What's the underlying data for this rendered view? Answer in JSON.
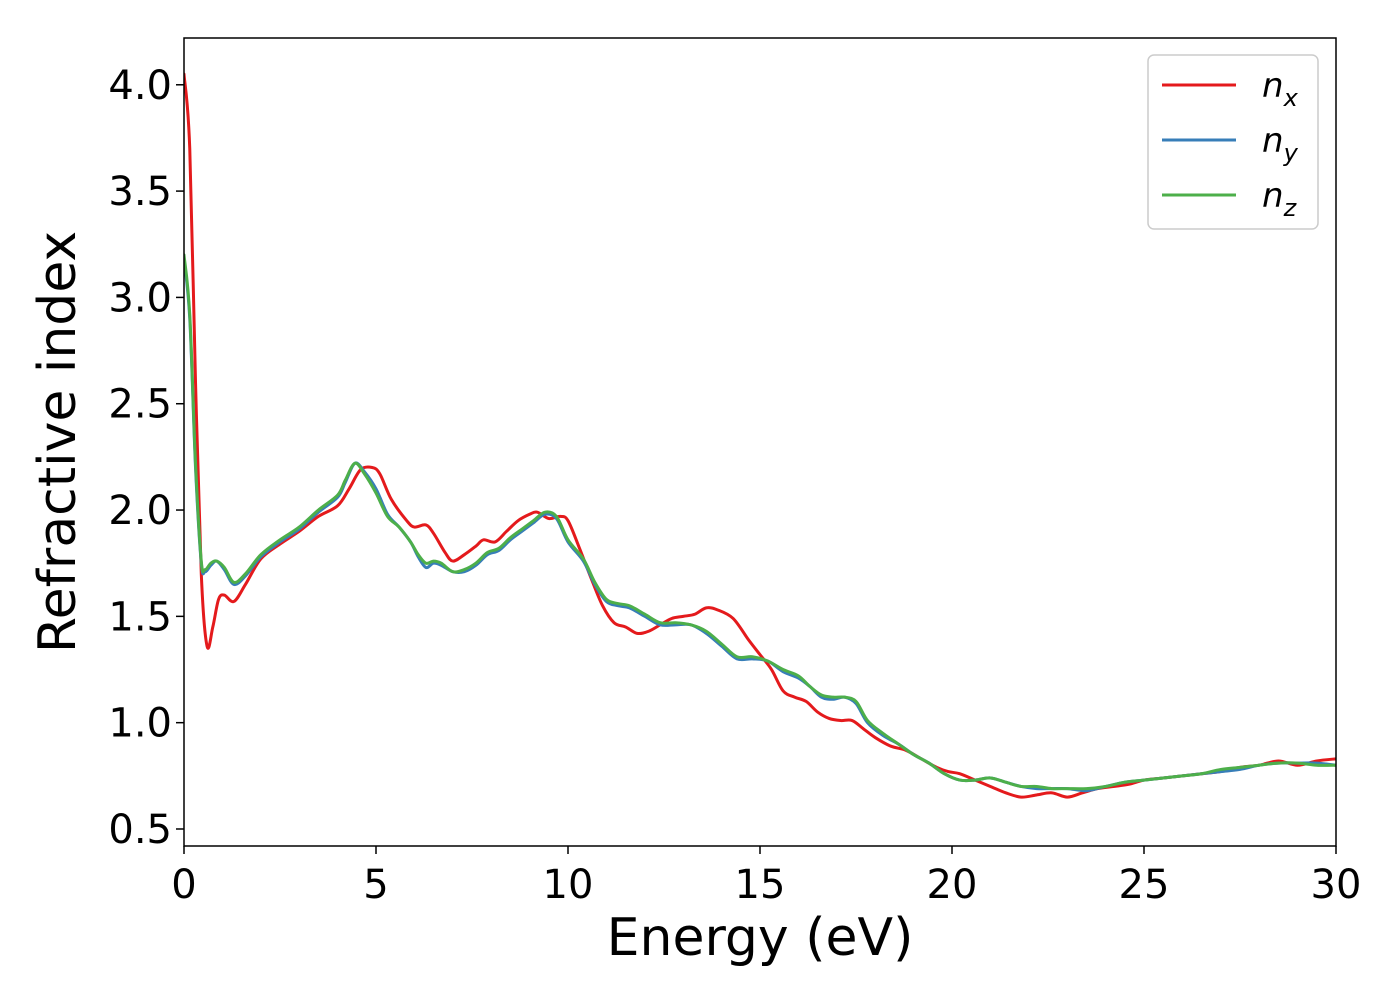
{
  "chart_data": {
    "type": "line",
    "title": "",
    "xlabel": "Energy (eV)",
    "ylabel": "Refractive index",
    "xlim": [
      0,
      30
    ],
    "ylim": [
      0.42,
      4.22
    ],
    "x_ticks": [
      0,
      5,
      10,
      15,
      20,
      25,
      30
    ],
    "x_tick_labels": [
      "0",
      "5",
      "10",
      "15",
      "20",
      "25",
      "30"
    ],
    "y_ticks": [
      0.5,
      1.0,
      1.5,
      2.0,
      2.5,
      3.0,
      3.5,
      4.0
    ],
    "y_tick_labels": [
      "0.5",
      "1.0",
      "1.5",
      "2.0",
      "2.5",
      "3.0",
      "3.5",
      "4.0"
    ],
    "grid": false,
    "legend_position": "top-right",
    "series": [
      {
        "name": "n_x",
        "label_base": "n",
        "label_sub": "x",
        "color": "#e41a1c",
        "points": [
          [
            0,
            4.05
          ],
          [
            0.15,
            3.7
          ],
          [
            0.3,
            2.6
          ],
          [
            0.45,
            1.7
          ],
          [
            0.6,
            1.36
          ],
          [
            0.75,
            1.45
          ],
          [
            0.9,
            1.58
          ],
          [
            1.05,
            1.6
          ],
          [
            1.3,
            1.57
          ],
          [
            1.6,
            1.65
          ],
          [
            2.0,
            1.77
          ],
          [
            2.5,
            1.84
          ],
          [
            3.0,
            1.9
          ],
          [
            3.5,
            1.97
          ],
          [
            4.0,
            2.02
          ],
          [
            4.3,
            2.1
          ],
          [
            4.6,
            2.19
          ],
          [
            4.9,
            2.2
          ],
          [
            5.1,
            2.17
          ],
          [
            5.4,
            2.05
          ],
          [
            5.8,
            1.95
          ],
          [
            6.0,
            1.92
          ],
          [
            6.3,
            1.93
          ],
          [
            6.5,
            1.89
          ],
          [
            6.8,
            1.8
          ],
          [
            7.0,
            1.76
          ],
          [
            7.3,
            1.79
          ],
          [
            7.6,
            1.83
          ],
          [
            7.8,
            1.86
          ],
          [
            8.1,
            1.85
          ],
          [
            8.4,
            1.9
          ],
          [
            8.7,
            1.95
          ],
          [
            9.0,
            1.98
          ],
          [
            9.2,
            1.99
          ],
          [
            9.5,
            1.96
          ],
          [
            9.8,
            1.97
          ],
          [
            10.0,
            1.95
          ],
          [
            10.3,
            1.82
          ],
          [
            10.6,
            1.68
          ],
          [
            10.9,
            1.55
          ],
          [
            11.2,
            1.47
          ],
          [
            11.5,
            1.45
          ],
          [
            11.8,
            1.42
          ],
          [
            12.1,
            1.43
          ],
          [
            12.4,
            1.46
          ],
          [
            12.7,
            1.49
          ],
          [
            13.0,
            1.5
          ],
          [
            13.3,
            1.51
          ],
          [
            13.6,
            1.54
          ],
          [
            13.9,
            1.53
          ],
          [
            14.3,
            1.49
          ],
          [
            14.7,
            1.39
          ],
          [
            15.0,
            1.32
          ],
          [
            15.3,
            1.25
          ],
          [
            15.6,
            1.15
          ],
          [
            15.9,
            1.12
          ],
          [
            16.2,
            1.1
          ],
          [
            16.5,
            1.05
          ],
          [
            16.8,
            1.02
          ],
          [
            17.1,
            1.01
          ],
          [
            17.4,
            1.01
          ],
          [
            17.7,
            0.97
          ],
          [
            18.0,
            0.93
          ],
          [
            18.4,
            0.89
          ],
          [
            18.8,
            0.87
          ],
          [
            19.2,
            0.83
          ],
          [
            19.6,
            0.79
          ],
          [
            19.9,
            0.77
          ],
          [
            20.2,
            0.76
          ],
          [
            20.6,
            0.73
          ],
          [
            21.0,
            0.7
          ],
          [
            21.4,
            0.67
          ],
          [
            21.8,
            0.65
          ],
          [
            22.2,
            0.66
          ],
          [
            22.6,
            0.67
          ],
          [
            23.0,
            0.65
          ],
          [
            23.4,
            0.67
          ],
          [
            23.8,
            0.69
          ],
          [
            24.2,
            0.7
          ],
          [
            24.6,
            0.71
          ],
          [
            25.0,
            0.73
          ],
          [
            25.5,
            0.74
          ],
          [
            26.0,
            0.75
          ],
          [
            26.5,
            0.76
          ],
          [
            27.0,
            0.77
          ],
          [
            27.5,
            0.79
          ],
          [
            28.0,
            0.8
          ],
          [
            28.5,
            0.82
          ],
          [
            29.0,
            0.8
          ],
          [
            29.5,
            0.82
          ],
          [
            30.0,
            0.83
          ]
        ]
      },
      {
        "name": "n_y",
        "label_base": "n",
        "label_sub": "y",
        "color": "#377eb8",
        "points": [
          [
            0,
            3.18
          ],
          [
            0.15,
            2.9
          ],
          [
            0.3,
            2.2
          ],
          [
            0.45,
            1.75
          ],
          [
            0.55,
            1.71
          ],
          [
            0.7,
            1.74
          ],
          [
            0.85,
            1.76
          ],
          [
            1.05,
            1.72
          ],
          [
            1.3,
            1.65
          ],
          [
            1.6,
            1.69
          ],
          [
            2.0,
            1.78
          ],
          [
            2.5,
            1.85
          ],
          [
            3.0,
            1.91
          ],
          [
            3.5,
            1.99
          ],
          [
            4.0,
            2.06
          ],
          [
            4.2,
            2.13
          ],
          [
            4.45,
            2.22
          ],
          [
            4.7,
            2.18
          ],
          [
            5.0,
            2.1
          ],
          [
            5.3,
            1.98
          ],
          [
            5.6,
            1.92
          ],
          [
            5.9,
            1.85
          ],
          [
            6.1,
            1.78
          ],
          [
            6.3,
            1.73
          ],
          [
            6.5,
            1.75
          ],
          [
            6.7,
            1.74
          ],
          [
            7.0,
            1.71
          ],
          [
            7.3,
            1.71
          ],
          [
            7.6,
            1.74
          ],
          [
            7.9,
            1.79
          ],
          [
            8.2,
            1.81
          ],
          [
            8.5,
            1.86
          ],
          [
            8.8,
            1.9
          ],
          [
            9.1,
            1.94
          ],
          [
            9.4,
            1.98
          ],
          [
            9.7,
            1.96
          ],
          [
            10.0,
            1.85
          ],
          [
            10.4,
            1.76
          ],
          [
            10.7,
            1.65
          ],
          [
            11.0,
            1.57
          ],
          [
            11.3,
            1.55
          ],
          [
            11.6,
            1.54
          ],
          [
            12.0,
            1.5
          ],
          [
            12.4,
            1.46
          ],
          [
            12.8,
            1.46
          ],
          [
            13.2,
            1.46
          ],
          [
            13.6,
            1.42
          ],
          [
            14.0,
            1.36
          ],
          [
            14.4,
            1.3
          ],
          [
            14.8,
            1.3
          ],
          [
            15.2,
            1.29
          ],
          [
            15.6,
            1.24
          ],
          [
            16.0,
            1.21
          ],
          [
            16.3,
            1.17
          ],
          [
            16.6,
            1.12
          ],
          [
            16.9,
            1.11
          ],
          [
            17.2,
            1.12
          ],
          [
            17.5,
            1.09
          ],
          [
            17.8,
            1.0
          ],
          [
            18.2,
            0.94
          ],
          [
            18.6,
            0.9
          ],
          [
            19.0,
            0.85
          ],
          [
            19.4,
            0.81
          ],
          [
            19.8,
            0.76
          ],
          [
            20.2,
            0.73
          ],
          [
            20.6,
            0.73
          ],
          [
            21.0,
            0.74
          ],
          [
            21.4,
            0.72
          ],
          [
            21.8,
            0.7
          ],
          [
            22.2,
            0.69
          ],
          [
            22.6,
            0.69
          ],
          [
            23.0,
            0.69
          ],
          [
            23.5,
            0.68
          ],
          [
            24.0,
            0.7
          ],
          [
            24.5,
            0.72
          ],
          [
            25.0,
            0.73
          ],
          [
            25.5,
            0.74
          ],
          [
            26.0,
            0.75
          ],
          [
            26.5,
            0.76
          ],
          [
            27.0,
            0.77
          ],
          [
            27.5,
            0.78
          ],
          [
            28.0,
            0.8
          ],
          [
            28.5,
            0.81
          ],
          [
            29.0,
            0.81
          ],
          [
            29.5,
            0.81
          ],
          [
            30.0,
            0.8
          ]
        ]
      },
      {
        "name": "n_z",
        "label_base": "n",
        "label_sub": "z",
        "color": "#4daf4a",
        "points": [
          [
            0,
            3.2
          ],
          [
            0.15,
            2.92
          ],
          [
            0.3,
            2.22
          ],
          [
            0.45,
            1.76
          ],
          [
            0.55,
            1.72
          ],
          [
            0.7,
            1.75
          ],
          [
            0.85,
            1.76
          ],
          [
            1.05,
            1.73
          ],
          [
            1.3,
            1.66
          ],
          [
            1.6,
            1.7
          ],
          [
            2.0,
            1.79
          ],
          [
            2.5,
            1.86
          ],
          [
            3.0,
            1.92
          ],
          [
            3.5,
            2.0
          ],
          [
            4.0,
            2.07
          ],
          [
            4.2,
            2.14
          ],
          [
            4.45,
            2.22
          ],
          [
            4.7,
            2.17
          ],
          [
            5.0,
            2.08
          ],
          [
            5.3,
            1.97
          ],
          [
            5.6,
            1.92
          ],
          [
            5.9,
            1.85
          ],
          [
            6.1,
            1.79
          ],
          [
            6.3,
            1.75
          ],
          [
            6.5,
            1.76
          ],
          [
            6.7,
            1.75
          ],
          [
            7.0,
            1.71
          ],
          [
            7.3,
            1.72
          ],
          [
            7.6,
            1.75
          ],
          [
            7.9,
            1.8
          ],
          [
            8.2,
            1.82
          ],
          [
            8.5,
            1.87
          ],
          [
            8.8,
            1.91
          ],
          [
            9.1,
            1.95
          ],
          [
            9.4,
            1.99
          ],
          [
            9.7,
            1.97
          ],
          [
            10.0,
            1.86
          ],
          [
            10.4,
            1.77
          ],
          [
            10.7,
            1.66
          ],
          [
            11.0,
            1.58
          ],
          [
            11.3,
            1.56
          ],
          [
            11.6,
            1.55
          ],
          [
            12.0,
            1.51
          ],
          [
            12.4,
            1.47
          ],
          [
            12.8,
            1.47
          ],
          [
            13.2,
            1.46
          ],
          [
            13.6,
            1.43
          ],
          [
            14.0,
            1.37
          ],
          [
            14.4,
            1.31
          ],
          [
            14.8,
            1.31
          ],
          [
            15.2,
            1.29
          ],
          [
            15.6,
            1.25
          ],
          [
            16.0,
            1.22
          ],
          [
            16.3,
            1.17
          ],
          [
            16.6,
            1.13
          ],
          [
            16.9,
            1.12
          ],
          [
            17.2,
            1.12
          ],
          [
            17.5,
            1.1
          ],
          [
            17.8,
            1.01
          ],
          [
            18.2,
            0.95
          ],
          [
            18.6,
            0.9
          ],
          [
            19.0,
            0.85
          ],
          [
            19.4,
            0.81
          ],
          [
            19.8,
            0.76
          ],
          [
            20.2,
            0.73
          ],
          [
            20.6,
            0.73
          ],
          [
            21.0,
            0.74
          ],
          [
            21.4,
            0.72
          ],
          [
            21.8,
            0.7
          ],
          [
            22.2,
            0.7
          ],
          [
            22.6,
            0.69
          ],
          [
            23.0,
            0.69
          ],
          [
            23.5,
            0.69
          ],
          [
            24.0,
            0.7
          ],
          [
            24.5,
            0.72
          ],
          [
            25.0,
            0.73
          ],
          [
            25.5,
            0.74
          ],
          [
            26.0,
            0.75
          ],
          [
            26.5,
            0.76
          ],
          [
            27.0,
            0.78
          ],
          [
            27.5,
            0.79
          ],
          [
            28.0,
            0.8
          ],
          [
            28.5,
            0.81
          ],
          [
            29.0,
            0.81
          ],
          [
            29.5,
            0.8
          ],
          [
            30.0,
            0.8
          ]
        ]
      }
    ]
  }
}
